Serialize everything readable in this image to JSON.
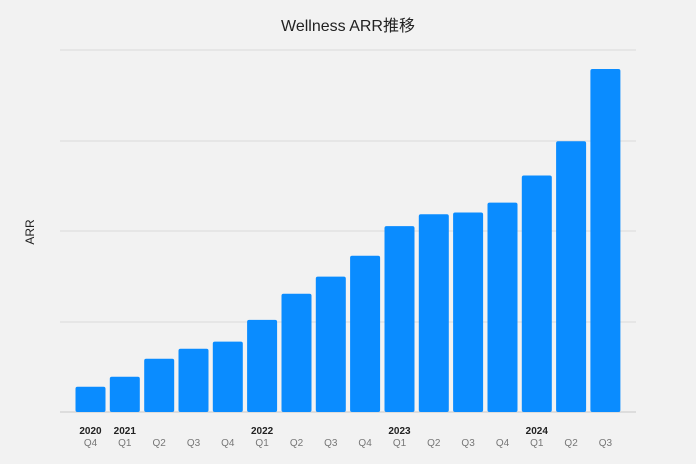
{
  "chart_data": {
    "type": "bar",
    "title": "Wellness ARR推移",
    "ylabel": "ARR",
    "xlabel": "",
    "bar_color": "#0a8cff",
    "background": "#f2f2f2",
    "grid": true,
    "ylim": [
      0,
      380
    ],
    "grid_values": [
      0,
      100,
      200,
      300,
      400
    ],
    "categories": [
      {
        "year": "2020",
        "quarter": "Q4"
      },
      {
        "year": "2021",
        "quarter": "Q1"
      },
      {
        "year": "",
        "quarter": "Q2"
      },
      {
        "year": "",
        "quarter": "Q3"
      },
      {
        "year": "",
        "quarter": "Q4"
      },
      {
        "year": "2022",
        "quarter": "Q1"
      },
      {
        "year": "",
        "quarter": "Q2"
      },
      {
        "year": "",
        "quarter": "Q3"
      },
      {
        "year": "",
        "quarter": "Q4"
      },
      {
        "year": "2023",
        "quarter": "Q1"
      },
      {
        "year": "",
        "quarter": "Q2"
      },
      {
        "year": "",
        "quarter": "Q3"
      },
      {
        "year": "",
        "quarter": "Q4"
      },
      {
        "year": "2024",
        "quarter": "Q1"
      },
      {
        "year": "",
        "quarter": "Q2"
      },
      {
        "year": "",
        "quarter": "Q3"
      }
    ],
    "values": [
      28,
      39,
      59,
      70,
      78,
      102,
      131,
      150,
      173,
      206,
      219,
      221,
      232,
      262,
      300,
      380
    ]
  }
}
